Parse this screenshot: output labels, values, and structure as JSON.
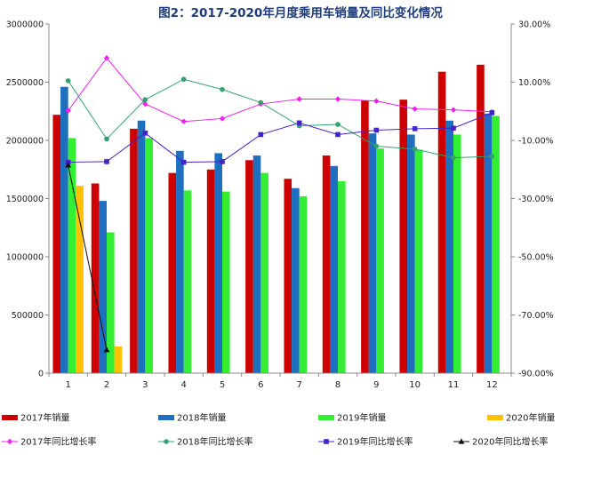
{
  "chart_data": {
    "type": "bar",
    "title": "图2：2017-2020年月度乘用车销量及同比变化情况",
    "categories": [
      "1",
      "2",
      "3",
      "4",
      "5",
      "6",
      "7",
      "8",
      "9",
      "10",
      "11",
      "12"
    ],
    "y_left": {
      "range": [
        0,
        3000000
      ],
      "ticks": [
        "0",
        "500000",
        "1000000",
        "1500000",
        "2000000",
        "2500000",
        "3000000"
      ]
    },
    "y_right": {
      "range": [
        -90,
        30
      ],
      "ticks": [
        "-90.00%",
        "-70.00%",
        "-50.00%",
        "-30.00%",
        "-10.00%",
        "10.00%",
        "30.00%"
      ]
    },
    "grid": false,
    "legend_position": "bottom",
    "bar_series": [
      {
        "name": "2017年销量",
        "color": "#cc0000",
        "values": [
          2220000,
          1630000,
          2100000,
          1720000,
          1750000,
          1830000,
          1670000,
          1870000,
          2340000,
          2350000,
          2590000,
          2650000
        ]
      },
      {
        "name": "2018年销量",
        "color": "#1e6fc0",
        "values": [
          2460000,
          1480000,
          2170000,
          1910000,
          1890000,
          1870000,
          1590000,
          1780000,
          2060000,
          2050000,
          2170000,
          2230000
        ]
      },
      {
        "name": "2019年销量",
        "color": "#33ee33",
        "values": [
          2020000,
          1210000,
          2020000,
          1570000,
          1560000,
          1720000,
          1520000,
          1650000,
          1930000,
          1920000,
          2050000,
          2210000
        ]
      },
      {
        "name": "2020年销量",
        "color": "#ffc000",
        "values": [
          1610000,
          230000,
          null,
          null,
          null,
          null,
          null,
          null,
          null,
          null,
          null,
          null
        ]
      }
    ],
    "line_series": [
      {
        "name": "2017年同比增长率",
        "color": "#ee22ee",
        "marker": "diamond",
        "values": [
          0.2,
          18.3,
          2.5,
          -3.5,
          -2.5,
          2.5,
          4.2,
          4.2,
          3.5,
          0.8,
          0.5,
          -0.2
        ]
      },
      {
        "name": "2018年同比增长率",
        "color": "#33a070",
        "marker": "circle",
        "values": [
          10.5,
          -9.5,
          4,
          11,
          7.5,
          3,
          -5,
          -4.5,
          -12,
          -13,
          -16,
          -15.5
        ]
      },
      {
        "name": "2019年同比增长率",
        "color": "#4422cc",
        "marker": "square",
        "values": [
          -17.5,
          -17.3,
          -7.5,
          -17.5,
          -17.3,
          -8,
          -4,
          -8,
          -6.5,
          -6,
          -5.8,
          -0.5
        ]
      },
      {
        "name": "2020年同比增长率",
        "color": "#111111",
        "marker": "triangle",
        "values": [
          -18.5,
          -82,
          null,
          null,
          null,
          null,
          null,
          null,
          null,
          null,
          null,
          null
        ]
      }
    ]
  }
}
